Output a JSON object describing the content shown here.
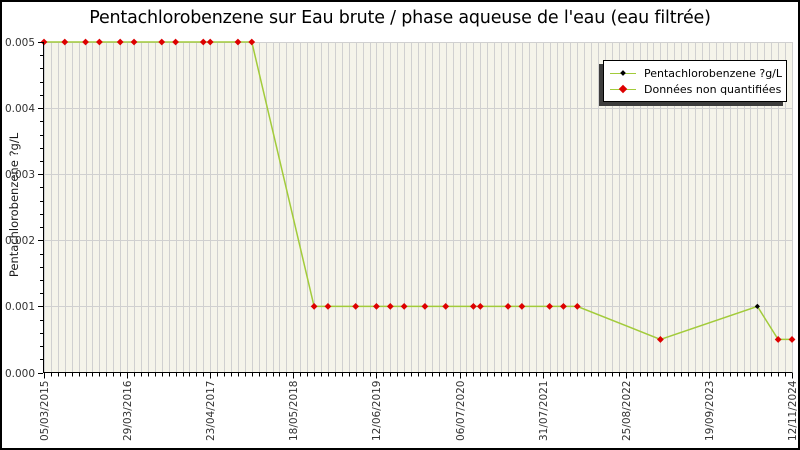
{
  "chart_data": {
    "type": "line",
    "title": "Pentachlorobenzene sur Eau brute / phase aqueuse de l'eau (eau filtrée)",
    "ylabel": "Pentachlorobenzene ?g/L",
    "xlabel": "",
    "ylim": [
      0,
      0.005
    ],
    "y_tick_labels": [
      "0.000",
      "0.001",
      "0.002",
      "0.003",
      "0.004",
      "0.005"
    ],
    "y_minor_step": 0.0002,
    "x_ticks_total": 109,
    "x_label_every": 12,
    "x_tick_labels": [
      "05/03/2015",
      "29/03/2016",
      "23/04/2017",
      "18/05/2018",
      "12/06/2019",
      "06/07/2020",
      "31/07/2021",
      "25/08/2022",
      "19/09/2023",
      "12/11/2024"
    ],
    "grid": {
      "vertical": "every-sample",
      "horizontal": "major"
    },
    "legend_position": "top-right",
    "points": [
      {
        "i": 0,
        "v": 0.005,
        "quantified": false
      },
      {
        "i": 3,
        "v": 0.005,
        "quantified": false
      },
      {
        "i": 6,
        "v": 0.005,
        "quantified": false
      },
      {
        "i": 8,
        "v": 0.005,
        "quantified": false
      },
      {
        "i": 11,
        "v": 0.005,
        "quantified": false
      },
      {
        "i": 13,
        "v": 0.005,
        "quantified": false
      },
      {
        "i": 17,
        "v": 0.005,
        "quantified": false
      },
      {
        "i": 19,
        "v": 0.005,
        "quantified": false
      },
      {
        "i": 23,
        "v": 0.005,
        "quantified": false
      },
      {
        "i": 24,
        "v": 0.005,
        "quantified": false
      },
      {
        "i": 28,
        "v": 0.005,
        "quantified": false
      },
      {
        "i": 30,
        "v": 0.005,
        "quantified": false
      },
      {
        "i": 39,
        "v": 0.001,
        "quantified": false
      },
      {
        "i": 41,
        "v": 0.001,
        "quantified": false
      },
      {
        "i": 45,
        "v": 0.001,
        "quantified": false
      },
      {
        "i": 48,
        "v": 0.001,
        "quantified": false
      },
      {
        "i": 50,
        "v": 0.001,
        "quantified": false
      },
      {
        "i": 52,
        "v": 0.001,
        "quantified": false
      },
      {
        "i": 55,
        "v": 0.001,
        "quantified": false
      },
      {
        "i": 58,
        "v": 0.001,
        "quantified": false
      },
      {
        "i": 62,
        "v": 0.001,
        "quantified": false
      },
      {
        "i": 63,
        "v": 0.001,
        "quantified": false
      },
      {
        "i": 67,
        "v": 0.001,
        "quantified": false
      },
      {
        "i": 69,
        "v": 0.001,
        "quantified": false
      },
      {
        "i": 73,
        "v": 0.001,
        "quantified": false
      },
      {
        "i": 75,
        "v": 0.001,
        "quantified": false
      },
      {
        "i": 77,
        "v": 0.001,
        "quantified": false
      },
      {
        "i": 89,
        "v": 0.0005,
        "quantified": false
      },
      {
        "i": 103,
        "v": 0.001,
        "quantified": true
      },
      {
        "i": 106,
        "v": 0.0005,
        "quantified": false
      },
      {
        "i": 108,
        "v": 0.0005,
        "quantified": false
      }
    ],
    "colors": {
      "line": "#a2cb3a",
      "marker_non_quantified": "#dd0000",
      "marker_quantified": "#000000",
      "plot_background": "#f5f4ea",
      "grid": "#d0d0d0",
      "axis": "#000000",
      "tick_label": "#333333"
    }
  },
  "legend": {
    "items": [
      {
        "label": "Pentachlorobenzene ?g/L",
        "marker": "black-diamond-small",
        "marker_color": "#000000",
        "line_color": "#a2cb3a"
      },
      {
        "label": "Données non quantifiées",
        "marker": "red-diamond",
        "marker_color": "#dd0000",
        "line_color": "#a2cb3a"
      }
    ]
  }
}
